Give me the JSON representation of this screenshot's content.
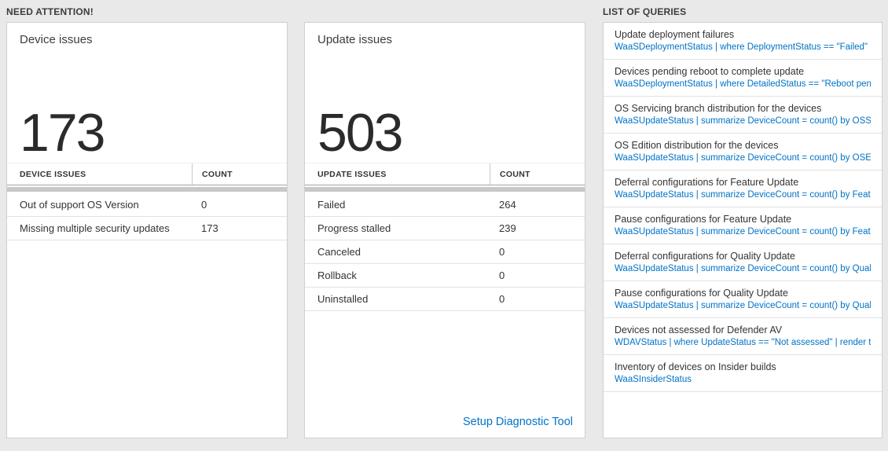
{
  "colors": {
    "background": "#e9e9e9",
    "accent_blue": "#0072c6",
    "tile_border": "#cfcfcf",
    "scrollbar_gray": "#c8c8c8"
  },
  "need_attention": {
    "section_title": "NEED ATTENTION!",
    "device_tile": {
      "title": "Device issues",
      "big_count": "173",
      "table": {
        "label_header": "DEVICE ISSUES",
        "count_header": "COUNT",
        "rows": [
          {
            "label": "Out of support OS Version",
            "count": "0"
          },
          {
            "label": "Missing multiple security updates",
            "count": "173"
          }
        ]
      }
    },
    "update_tile": {
      "title": "Update issues",
      "big_count": "503",
      "table": {
        "label_header": "UPDATE ISSUES",
        "count_header": "COUNT",
        "rows": [
          {
            "label": "Failed",
            "count": "264"
          },
          {
            "label": "Progress stalled",
            "count": "239"
          },
          {
            "label": "Canceled",
            "count": "0"
          },
          {
            "label": "Rollback",
            "count": "0"
          },
          {
            "label": "Uninstalled",
            "count": "0"
          }
        ]
      },
      "footer_link": "Setup Diagnostic Tool"
    }
  },
  "queries_section": {
    "section_title": "LIST OF QUERIES",
    "items": [
      {
        "title": "Update deployment failures",
        "query": "WaaSDeploymentStatus | where DeploymentStatus == \"Failed\" |..."
      },
      {
        "title": "Devices pending reboot to complete update",
        "query": "WaaSDeploymentStatus | where DetailedStatus == \"Reboot pend..."
      },
      {
        "title": "OS Servicing branch distribution for the devices",
        "query": "WaaSUpdateStatus | summarize DeviceCount = count() by OSSer..."
      },
      {
        "title": "OS Edition distribution for the devices",
        "query": "WaaSUpdateStatus | summarize DeviceCount = count() by OSEdit..."
      },
      {
        "title": "Deferral configurations for Feature Update",
        "query": "WaaSUpdateStatus | summarize DeviceCount = count() by Featur..."
      },
      {
        "title": "Pause configurations for Feature Update",
        "query": "WaaSUpdateStatus | summarize DeviceCount = count() by Featur..."
      },
      {
        "title": "Deferral configurations for Quality Update",
        "query": "WaaSUpdateStatus | summarize DeviceCount = count() by Qualit..."
      },
      {
        "title": "Pause configurations for Quality Update",
        "query": "WaaSUpdateStatus | summarize DeviceCount = count() by Qualit..."
      },
      {
        "title": "Devices not assessed for Defender AV",
        "query": "WDAVStatus | where UpdateStatus == \"Not assessed\" | render ta..."
      },
      {
        "title": "Inventory of devices on Insider builds",
        "query": "WaaSInsiderStatus"
      }
    ]
  }
}
